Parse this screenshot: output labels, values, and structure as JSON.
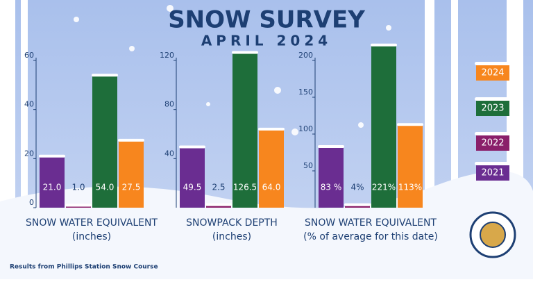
{
  "title": "SNOW SURVEY",
  "subtitle": "APRIL 2024",
  "legend": [
    {
      "name": "2024",
      "color": "#f7861e"
    },
    {
      "name": "2023",
      "color": "#1e6e3a"
    },
    {
      "name": "2022",
      "color": "#8a1f6a"
    },
    {
      "name": "2021",
      "color": "#6a2d91"
    }
  ],
  "bar_order": [
    3,
    2,
    1,
    0
  ],
  "footnote": "Results from Phillips Station Snow Course",
  "chart_data": [
    {
      "type": "bar",
      "xlabel": "SNOW WATER EQUIVALENT",
      "xlabel2": "(inches)",
      "values": [
        21.0,
        1.0,
        54.0,
        27.5
      ],
      "value_labels": [
        "21.0",
        "1.0",
        "54.0",
        "27.5"
      ],
      "ylim": [
        0,
        60
      ],
      "yticks": [
        0,
        20,
        40,
        60
      ]
    },
    {
      "type": "bar",
      "xlabel": "SNOWPACK DEPTH",
      "xlabel2": "(inches)",
      "values": [
        49.5,
        2.5,
        126.5,
        64.0
      ],
      "value_labels": [
        "49.5",
        "2.5",
        "126.5",
        "64.0"
      ],
      "ylim": [
        0,
        120
      ],
      "yticks": [
        40,
        80,
        120
      ]
    },
    {
      "type": "bar",
      "xlabel": "SNOW WATER EQUIVALENT",
      "xlabel2": "(% of average for this date)",
      "values": [
        83,
        4,
        221,
        113
      ],
      "value_labels": [
        "83 %",
        "4%",
        "221%",
        "113%"
      ],
      "ylim": [
        0,
        200
      ],
      "yticks": [
        50,
        100,
        150,
        200
      ]
    }
  ]
}
